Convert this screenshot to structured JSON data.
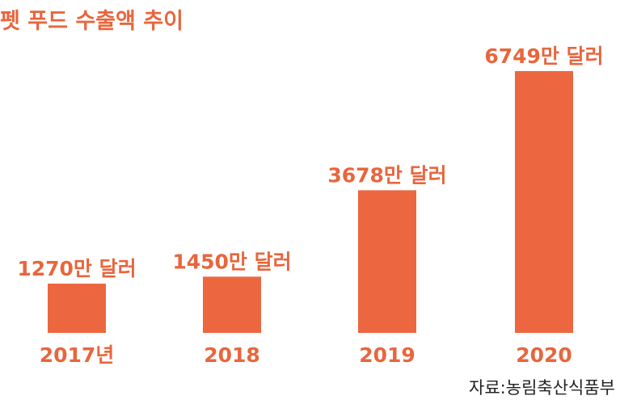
{
  "title": "펫 푸드 수출액 추이",
  "source": "자료:농림축산식품부",
  "colors": {
    "bar": "#ec673f",
    "label": "#e8663d"
  },
  "chart_data": {
    "type": "bar",
    "title": "펫 푸드 수출액 추이",
    "categories": [
      "2017년",
      "2018",
      "2019",
      "2020"
    ],
    "values": [
      1270,
      1450,
      3678,
      6749
    ],
    "value_labels": [
      "1270만 달러",
      "1450만 달러",
      "3678만 달러",
      "6749만 달러"
    ],
    "unit": "만 달러",
    "ylim": [
      0,
      7000
    ],
    "grid": false,
    "legend": "none"
  }
}
